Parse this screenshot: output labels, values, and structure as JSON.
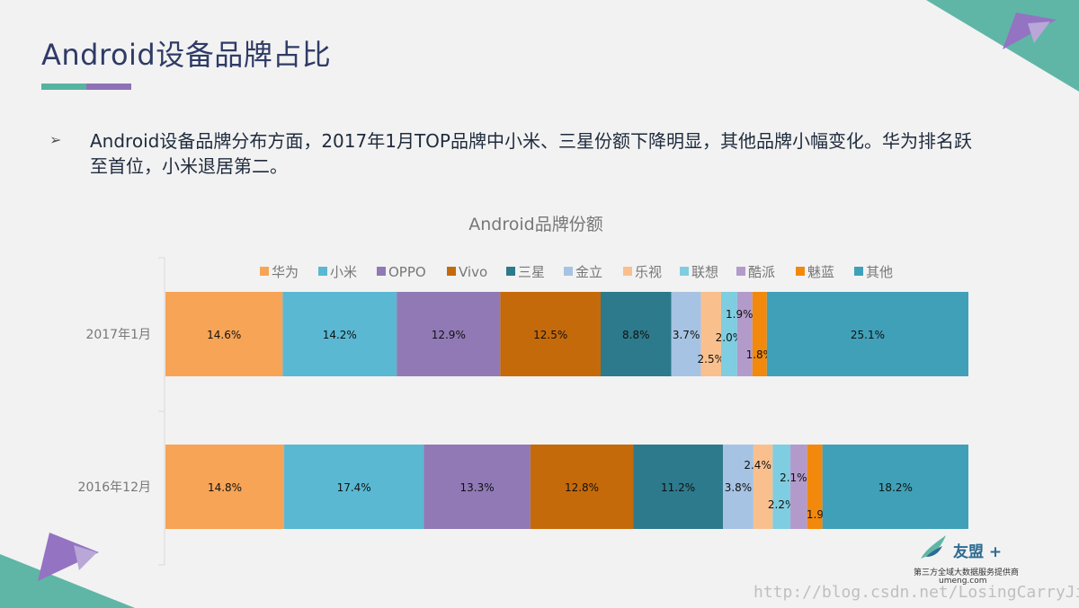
{
  "slide": {
    "title": "Android设备品牌占比",
    "bullet": "Android设备品牌分布方面，2017年1月TOP品牌中小米、三星份额下降明显，其他品牌小幅变化。华为排名跃至首位，小米退居第二。"
  },
  "brand": {
    "logo_name": "友盟",
    "logo_plus": "+",
    "tagline": "第三方全域大数据服务提供商",
    "url": "umeng.com"
  },
  "watermark": "http://blog.csdn.net/LosingCarryJie",
  "colors": {
    "华为": "#f7a456",
    "小米": "#5ab8d3",
    "OPPO": "#9079b5",
    "Vivo": "#c56a0b",
    "三星": "#2d7a8c",
    "金立": "#a7c3e3",
    "乐视": "#f9c08e",
    "联想": "#7fcde0",
    "酷派": "#b29bcb",
    "魅蓝": "#f2890c",
    "其他": "#40a0b8"
  },
  "chart_data": {
    "type": "bar",
    "orientation": "horizontal",
    "stacked": true,
    "title": "Android品牌份额",
    "legend_position": "top",
    "categories": [
      "2017年1月",
      "2016年12月"
    ],
    "series": [
      {
        "name": "华为",
        "values": [
          14.6,
          14.8
        ]
      },
      {
        "name": "小米",
        "values": [
          14.2,
          17.4
        ]
      },
      {
        "name": "OPPO",
        "values": [
          12.9,
          13.3
        ]
      },
      {
        "name": "Vivo",
        "values": [
          12.5,
          12.8
        ]
      },
      {
        "name": "三星",
        "values": [
          8.8,
          11.2
        ]
      },
      {
        "name": "金立",
        "values": [
          3.7,
          3.8
        ]
      },
      {
        "name": "乐视",
        "values": [
          2.5,
          2.4
        ]
      },
      {
        "name": "联想",
        "values": [
          2.0,
          2.2
        ]
      },
      {
        "name": "酷派",
        "values": [
          1.9,
          2.1
        ]
      },
      {
        "name": "魅蓝",
        "values": [
          1.8,
          1.9
        ]
      },
      {
        "name": "其他",
        "values": [
          25.1,
          18.2
        ]
      }
    ],
    "value_labels": [
      [
        "14.6%",
        "14.2%",
        "12.9%",
        "12.5%",
        "8.8%",
        "3.7%",
        "2.5%",
        "2.0%",
        "1.9%",
        "1.8%",
        "25.1%"
      ],
      [
        "14.8%",
        "17.4%",
        "13.3%",
        "12.8%",
        "11.2%",
        "3.8%",
        "2.4%",
        "2.2%",
        "2.1%",
        "1.9%",
        "18.2%"
      ]
    ],
    "grid": false
  }
}
